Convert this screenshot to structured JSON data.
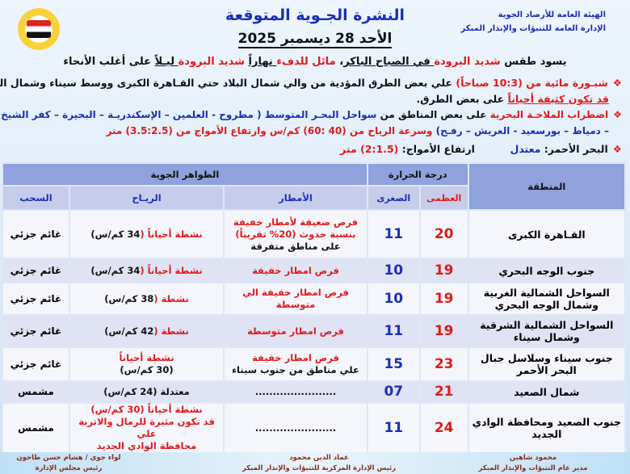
{
  "header": {
    "org_line1": "الهيئة العامة للأرصاد الجوية",
    "org_line2": "الإدارة العامة للتنبؤات والإنذار المبكر",
    "title": "النشرة الجـوية المتوقعة",
    "date": "الأحد 28 ديسمبر 2025"
  },
  "summary": [
    {
      "t": "يسود طقس ",
      "c": "blk"
    },
    {
      "t": "شديد البرودة",
      "c": "red"
    },
    {
      "t": " في الصباح الباكر",
      "c": "blk u"
    },
    {
      "t": "، ",
      "c": "blk"
    },
    {
      "t": "مائل للدفء",
      "c": "red"
    },
    {
      "t": " نهاراً",
      "c": "blk u"
    },
    {
      "t": " شديد البرودة",
      "c": "red"
    },
    {
      "t": " ليـلاً",
      "c": "blk u"
    },
    {
      "t": " على أغلب الأنحاء",
      "c": "blk"
    }
  ],
  "bullets": {
    "fog_1": [
      {
        "t": "شبـورة مائية من (10:3 صباحاً)",
        "c": "red"
      },
      {
        "t": " علي بعض الطرق المؤدية من والي شمال البلاد حتي القـاهرة الكبرى ووسط سيناء وشمال الصعيد",
        "c": "blk"
      }
    ],
    "fog_2": [
      {
        "t": "قد تكون كثيفة أحياناً",
        "c": "red u"
      },
      {
        "t": " على بعض الطرق.",
        "c": "blk"
      }
    ],
    "sea_1": [
      {
        "t": "اضطراب الملاحـة البحرية",
        "c": "red"
      },
      {
        "t": " على بعض المناطق من ",
        "c": "blk"
      },
      {
        "t": "سواحل البحـر المتوسط ( مطروح - العلمين – الإسكندريـة – البحيرة – كفر الشيخ",
        "c": "blue"
      }
    ],
    "sea_2": [
      {
        "t": "– دمياط – بورسعيد - العريش – رفـح)",
        "c": "blue"
      },
      {
        "t": " وسرعة الرياح من (40 :60) كم/س وارتفاع الأمواج من (3.5:2.5) متر",
        "c": "red"
      }
    ],
    "red_sea": [
      {
        "t": "البحر الأحمر: ",
        "c": "blk"
      },
      {
        "t": "معتدل",
        "c": "blue"
      },
      {
        "t": "          ارتفاع الأمواج: ",
        "c": "blk"
      },
      {
        "t": "(2:1.5) متر",
        "c": "red"
      }
    ]
  },
  "table": {
    "region_header": "المنطقة",
    "temp_header": "درجة الحرارة",
    "max_header": "العظمى",
    "min_header": "الصغرى",
    "phenomena_header": "الظواهر الجوية",
    "rain_header": "الأمطار",
    "wind_header": "الريـاح",
    "cloud_header": "السحب",
    "rows": [
      {
        "region": "القـاهرة الكبرى",
        "max": "20",
        "min": "11",
        "rain": [
          {
            "t": "فرص ضعيفة لأمطار خفيفة",
            "c": "red"
          },
          {
            "t": "بنسبة حدوث (20% تقريباً)",
            "c": "red"
          },
          {
            "t": "على مناطق متفرقة",
            "c": "blk"
          }
        ],
        "wind": [
          {
            "t": "نشطة أحياناً (",
            "c": "red"
          },
          {
            "t": "34 كم/س)",
            "c": "blk"
          }
        ],
        "cloud": "غائم جزئي"
      },
      {
        "region": "جنوب الوجه البحري",
        "max": "19",
        "min": "10",
        "rain": [
          {
            "t": "فرص امطار خفيفة",
            "c": "red"
          }
        ],
        "wind": [
          {
            "t": "نشطة أحياناً (",
            "c": "red"
          },
          {
            "t": "34 كم/س)",
            "c": "blk"
          }
        ],
        "cloud": "غائم جزئي"
      },
      {
        "region": "السواحل الشمالية الغربية وشمال الوجه البحري",
        "max": "19",
        "min": "10",
        "rain": [
          {
            "t": "فرص امطار خفيفة الي متوسطة",
            "c": "red"
          }
        ],
        "wind": [
          {
            "t": "نشطة (",
            "c": "red"
          },
          {
            "t": "38 كم/س)",
            "c": "blk"
          }
        ],
        "cloud": "غائم جزئي"
      },
      {
        "region": "السواحل الشمالية الشرقية وشمال سيناء",
        "max": "19",
        "min": "11",
        "rain": [
          {
            "t": "فرص امطار متوسطة",
            "c": "red"
          }
        ],
        "wind": [
          {
            "t": "نشطة (",
            "c": "red"
          },
          {
            "t": "42 كم/س)",
            "c": "blk"
          }
        ],
        "cloud": "غائم جزئي"
      },
      {
        "region": "جنوب سيناء وسلاسل جبال البحر الأحمر",
        "max": "23",
        "min": "15",
        "rain": [
          {
            "t": "فرص امطار خفيفة",
            "c": "red"
          },
          {
            "t": "علي مناطق من جنوب سيناء",
            "c": "blk"
          }
        ],
        "wind": [
          {
            "t": "نشطة أحياناً",
            "c": "red"
          },
          {
            "t": "(30 كم/س)",
            "c": "blk"
          }
        ],
        "cloud": "غائم جزئي"
      },
      {
        "region": "شمال الصعيد",
        "max": "21",
        "min": "07",
        "rain": [
          {
            "t": ".......................",
            "c": "blk"
          }
        ],
        "wind": [
          {
            "t": "معتدلة (24 كم/س)",
            "c": "blk"
          }
        ],
        "cloud": "مشمس"
      },
      {
        "region": "جنوب الصعيد ومحافظة الوادي الجديد",
        "max": "24",
        "min": "11",
        "rain": [
          {
            "t": ".......................",
            "c": "blk"
          }
        ],
        "wind": [
          {
            "t": "نشطة أحياناً  (30 كم/س)",
            "c": "red"
          },
          {
            "t": "قد تكون مثيرة للرمال والاتربة علي",
            "c": "red"
          },
          {
            "t": "محافظة الوادي الجديد",
            "c": "red"
          }
        ],
        "cloud": "مشمس"
      }
    ]
  },
  "signatures": [
    {
      "name": "محمود شاهين",
      "title": "مدير عام التنبؤات والإنذار المبكر"
    },
    {
      "name": "عماد الدين محمود",
      "title": "رئيس الإدارة المركزية للتنبؤات والإنذار المبكر"
    },
    {
      "name": "لواء جوى / هشام حسن طاحون",
      "title": "رئيس مجلس الإدارة"
    }
  ],
  "colors": {
    "red": "#e01b1b",
    "blue": "#1c2fb5",
    "header": "#8fa2dc"
  }
}
